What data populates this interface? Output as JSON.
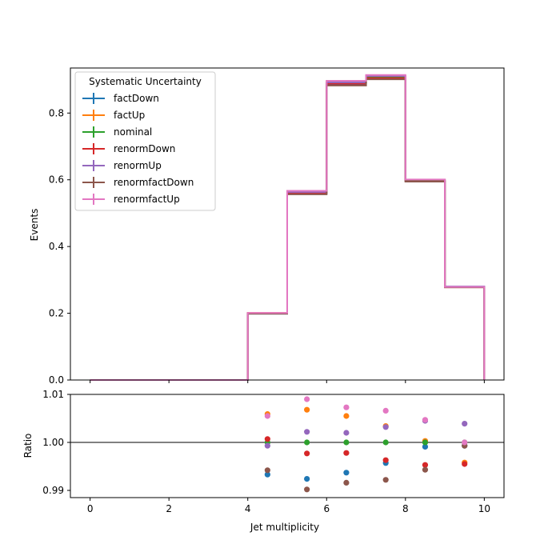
{
  "chart_data": {
    "type": "step",
    "xlabel": "Jet multiplicity",
    "main": {
      "ylabel": "Events",
      "xlim": [
        -0.5,
        10.5
      ],
      "ylim": [
        0.0,
        0.935
      ],
      "xticks": [
        0,
        2,
        4,
        6,
        8,
        10
      ],
      "yticks": [
        0.0,
        0.2,
        0.4,
        0.6,
        0.8
      ],
      "ytick_labels": [
        "0.0",
        "0.2",
        "0.4",
        "0.6",
        "0.8"
      ],
      "bin_edges": [
        0,
        1,
        2,
        3,
        4,
        5,
        6,
        7,
        8,
        9,
        10
      ],
      "series": [
        {
          "name": "factDown",
          "color": "#1f77b4",
          "values": [
            0,
            0,
            0,
            0,
            0.1988,
            0.558,
            0.885,
            0.905,
            0.596,
            0.278
          ]
        },
        {
          "name": "factUp",
          "color": "#ff7f0e",
          "values": [
            0,
            0,
            0,
            0,
            0.2012,
            0.566,
            0.895,
            0.91,
            0.6,
            0.279
          ]
        },
        {
          "name": "nominal",
          "color": "#2ca02c",
          "values": [
            0,
            0,
            0,
            0,
            0.2,
            0.562,
            0.89,
            0.908,
            0.598,
            0.279
          ]
        },
        {
          "name": "renormDown",
          "color": "#d62728",
          "values": [
            0,
            0,
            0,
            0,
            0.2001,
            0.5607,
            0.888,
            0.9047,
            0.5952,
            0.2777
          ]
        },
        {
          "name": "renormUp",
          "color": "#9467bd",
          "values": [
            0,
            0,
            0,
            0,
            0.1999,
            0.5632,
            0.8918,
            0.911,
            0.6007,
            0.2801
          ]
        },
        {
          "name": "renormfactDown",
          "color": "#8c564b",
          "values": [
            0,
            0,
            0,
            0,
            0.1988,
            0.5565,
            0.8825,
            0.901,
            0.5945,
            0.2778
          ]
        },
        {
          "name": "renormfactUp",
          "color": "#e377c2",
          "values": [
            0,
            0,
            0,
            0,
            0.2011,
            0.5671,
            0.8965,
            0.914,
            0.6008,
            0.279
          ]
        }
      ],
      "legend": {
        "title": "Systematic Uncertainty",
        "position": "upper-left"
      }
    },
    "ratio": {
      "ylabel": "Ratio",
      "ylim": [
        0.9885,
        1.01
      ],
      "yticks": [
        0.99,
        1.0,
        1.01
      ],
      "ytick_labels": [
        "0.99",
        "1.00",
        "1.01"
      ],
      "reference_line": 1.0,
      "x": [
        4.5,
        5.5,
        6.5,
        7.5,
        8.5,
        9.5
      ],
      "series": [
        {
          "name": "factDown",
          "color": "#1f77b4",
          "values": [
            0.9933,
            0.9924,
            0.9937,
            0.9957,
            0.9991,
            0.9993
          ]
        },
        {
          "name": "factUp",
          "color": "#ff7f0e",
          "values": [
            1.0059,
            1.0068,
            1.0055,
            1.0034,
            1.0003,
            0.9958
          ]
        },
        {
          "name": "nominal",
          "color": "#2ca02c",
          "values": [
            1.0,
            1.0,
            1.0,
            1.0,
            1.0,
            1.0
          ]
        },
        {
          "name": "renormDown",
          "color": "#d62728",
          "values": [
            1.0007,
            0.9977,
            0.9978,
            0.9963,
            0.9953,
            0.9955
          ]
        },
        {
          "name": "renormUp",
          "color": "#9467bd",
          "values": [
            0.9993,
            1.0022,
            1.002,
            1.0032,
            1.0045,
            1.0039
          ]
        },
        {
          "name": "renormfactDown",
          "color": "#8c564b",
          "values": [
            0.9942,
            0.9902,
            0.9916,
            0.9922,
            0.9943,
            0.9993
          ]
        },
        {
          "name": "renormfactUp",
          "color": "#e377c2",
          "values": [
            1.0055,
            1.009,
            1.0073,
            1.0066,
            1.0047,
            1.0
          ]
        }
      ]
    }
  }
}
